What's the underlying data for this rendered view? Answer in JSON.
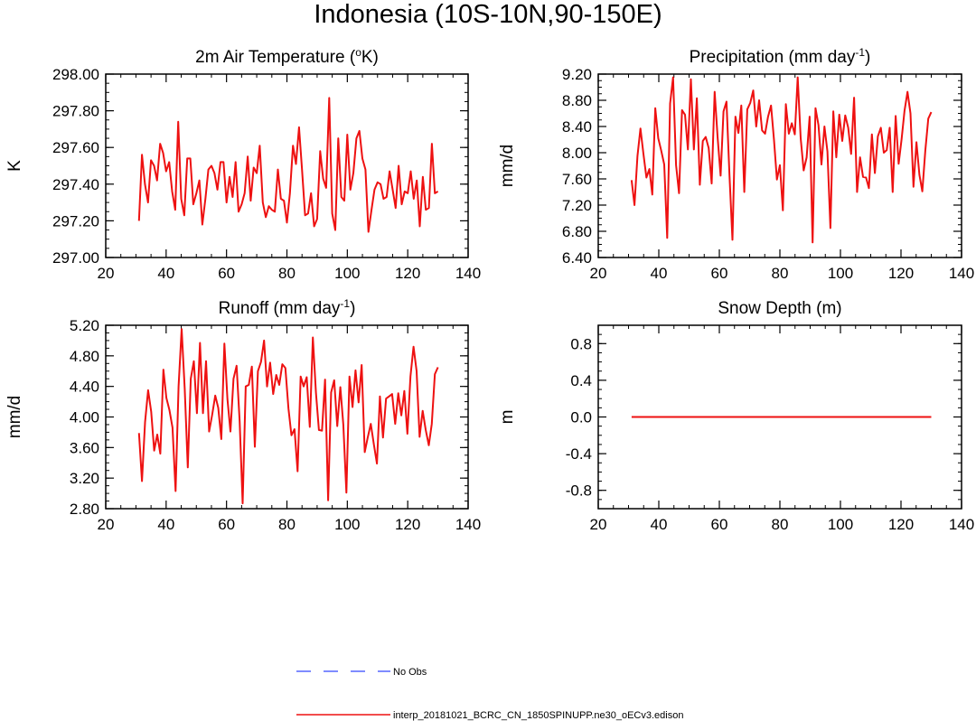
{
  "title": "Indonesia (10S-10N,90-150E)",
  "colors": {
    "model": "#ee1111",
    "obs": "#5566ff",
    "axis": "#000000"
  },
  "chart_data": [
    {
      "type": "line",
      "id": "temp",
      "title_main": "2m Air Temperature (",
      "title_sup": "o",
      "title_tail": "K)",
      "ylabel": "K",
      "xlim": [
        20,
        140
      ],
      "ylim": [
        297.0,
        298.0
      ],
      "xticks": [
        "20",
        "40",
        "60",
        "80",
        "100",
        "120",
        "140"
      ],
      "yticks": [
        "297.00",
        "297.20",
        "297.40",
        "297.60",
        "297.80",
        "298.00"
      ],
      "x_start": 31,
      "values": [
        297.2,
        297.56,
        297.4,
        297.3,
        297.53,
        297.5,
        297.42,
        297.62,
        297.57,
        297.47,
        297.52,
        297.36,
        297.26,
        297.74,
        297.32,
        297.23,
        297.54,
        297.54,
        297.29,
        297.35,
        297.42,
        297.18,
        297.32,
        297.48,
        297.5,
        297.46,
        297.37,
        297.52,
        297.52,
        297.3,
        297.44,
        297.33,
        297.52,
        297.25,
        297.29,
        297.35,
        297.55,
        297.31,
        297.49,
        297.46,
        297.61,
        297.3,
        297.22,
        297.28,
        297.26,
        297.25,
        297.48,
        297.32,
        297.31,
        297.19,
        297.35,
        297.61,
        297.51,
        297.71,
        297.48,
        297.23,
        297.24,
        297.35,
        297.17,
        297.21,
        297.58,
        297.43,
        297.38,
        297.87,
        297.24,
        297.15,
        297.65,
        297.33,
        297.31,
        297.67,
        297.37,
        297.46,
        297.65,
        297.69,
        297.54,
        297.48,
        297.14,
        297.26,
        297.37,
        297.41,
        297.4,
        297.32,
        297.33,
        297.47,
        297.37,
        297.27,
        297.5,
        297.29,
        297.36,
        297.35,
        297.47,
        297.32,
        297.42,
        297.17,
        297.44,
        297.26,
        297.27,
        297.62,
        297.35,
        297.36
      ]
    },
    {
      "type": "line",
      "id": "precip",
      "title_main": "Precipitation (mm day",
      "title_sup": "-1",
      "title_tail": ")",
      "ylabel": "mm/d",
      "xlim": [
        20,
        140
      ],
      "ylim": [
        6.4,
        9.2
      ],
      "xticks": [
        "20",
        "40",
        "60",
        "80",
        "100",
        "120",
        "140"
      ],
      "yticks": [
        "6.40",
        "6.80",
        "7.20",
        "7.60",
        "8.00",
        "8.40",
        "8.80",
        "9.20"
      ],
      "x_start": 31,
      "values": [
        7.58,
        7.2,
        7.95,
        8.37,
        7.98,
        7.62,
        7.75,
        7.36,
        8.68,
        8.22,
        8.03,
        7.82,
        6.7,
        8.75,
        9.15,
        7.81,
        7.38,
        8.65,
        8.58,
        8.05,
        9.12,
        8.05,
        8.83,
        7.51,
        8.18,
        8.24,
        8.07,
        7.53,
        8.93,
        8.23,
        7.65,
        8.63,
        8.78,
        7.66,
        6.67,
        8.55,
        8.3,
        8.72,
        7.4,
        8.66,
        8.76,
        8.95,
        8.4,
        8.8,
        8.34,
        8.29,
        8.55,
        8.72,
        8.19,
        7.59,
        7.81,
        7.12,
        8.74,
        8.29,
        8.45,
        8.28,
        9.15,
        8.22,
        7.73,
        7.93,
        8.55,
        6.63,
        8.68,
        8.42,
        7.82,
        8.4,
        8.02,
        6.85,
        8.63,
        7.93,
        8.58,
        8.18,
        8.57,
        8.38,
        7.98,
        8.84,
        7.4,
        7.93,
        7.63,
        7.62,
        7.46,
        8.28,
        7.69,
        8.25,
        8.38,
        8.0,
        8.04,
        8.38,
        7.4,
        8.56,
        7.83,
        8.21,
        8.64,
        8.93,
        8.6,
        7.48,
        8.16,
        7.66,
        7.41,
        8.03,
        8.52,
        8.62
      ],
      "x_end": 130
    },
    {
      "type": "line",
      "id": "runoff",
      "title_main": "Runoff (mm day",
      "title_sup": "-1",
      "title_tail": ")",
      "ylabel": "mm/d",
      "xlim": [
        20,
        140
      ],
      "ylim": [
        2.8,
        5.2
      ],
      "xticks": [
        "20",
        "40",
        "60",
        "80",
        "100",
        "120",
        "140"
      ],
      "yticks": [
        "2.80",
        "3.20",
        "3.60",
        "4.00",
        "4.40",
        "4.80",
        "5.20"
      ],
      "x_start": 31,
      "values": [
        3.79,
        3.16,
        3.93,
        4.35,
        4.07,
        3.56,
        3.77,
        3.52,
        4.62,
        4.25,
        4.09,
        3.86,
        3.03,
        4.4,
        5.15,
        4.37,
        3.34,
        4.5,
        4.73,
        4.05,
        4.97,
        4.05,
        4.73,
        3.81,
        4.03,
        4.28,
        4.12,
        3.71,
        4.96,
        4.23,
        3.81,
        4.5,
        4.67,
        3.94,
        2.87,
        4.4,
        4.42,
        4.66,
        3.61,
        4.6,
        4.72,
        5.0,
        4.4,
        4.71,
        4.3,
        4.55,
        4.42,
        4.69,
        4.64,
        4.11,
        3.76,
        3.84,
        3.29,
        4.53,
        4.4,
        4.52,
        3.87,
        5.04,
        4.32,
        3.83,
        3.82,
        4.49,
        2.91,
        4.32,
        4.48,
        3.88,
        4.39,
        3.9,
        3.01,
        4.53,
        4.13,
        4.61,
        4.19,
        4.68,
        3.54,
        3.73,
        3.91,
        3.64,
        3.39,
        4.27,
        3.73,
        4.24,
        4.27,
        4.3,
        3.91,
        4.31,
        4.02,
        4.34,
        3.78,
        4.53,
        4.92,
        4.6,
        3.74,
        4.08,
        3.83,
        3.63,
        3.91,
        4.56,
        4.65
      ],
      "x_end": 130
    },
    {
      "type": "line",
      "id": "snow",
      "title_main": "Snow Depth (m)",
      "title_sup": "",
      "title_tail": "",
      "ylabel": "m",
      "xlim": [
        20,
        140
      ],
      "ylim": [
        -1.0,
        1.0
      ],
      "xticks": [
        "20",
        "40",
        "60",
        "80",
        "100",
        "120",
        "140"
      ],
      "yticks": [
        "-0.8",
        "-0.4",
        "0.0",
        "0.4",
        "0.8"
      ],
      "ytick_values": [
        -0.8,
        -0.4,
        0.0,
        0.4,
        0.8
      ],
      "x_start": 31,
      "x_end": 130,
      "values": [
        0.0,
        0.0
      ]
    }
  ],
  "legend": {
    "obs_label": "No Obs",
    "model_label": "interp_20181021_BCRC_CN_1850SPINUPP.ne30_oECv3.edison"
  }
}
